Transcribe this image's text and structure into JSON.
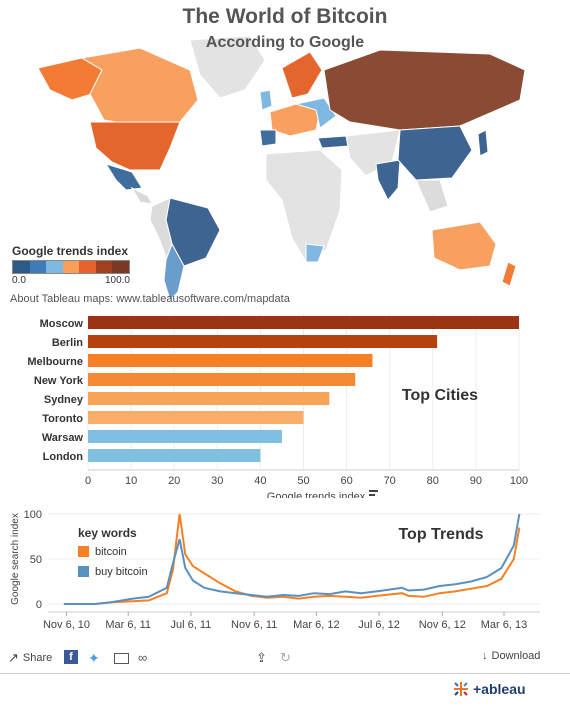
{
  "title": "The World of Bitcoin",
  "map": {
    "subtitle": "According to Google",
    "legend_title": "Google trends index",
    "legend_min": "0.0",
    "legend_max": "100.0",
    "legend_colors": [
      "#2e5a87",
      "#3f7bb8",
      "#7fb8e0",
      "#f7a05a",
      "#e8632c",
      "#a0401e",
      "#7a3a26"
    ],
    "about": "About Tableau maps: www.tableausoftware.com/mapdata"
  },
  "chart_data": [
    {
      "type": "bar",
      "title": "Top Cities",
      "categories": [
        "Moscow",
        "Berlin",
        "Melbourne",
        "New York",
        "Sydney",
        "Toronto",
        "Warsaw",
        "London"
      ],
      "values": [
        100,
        81,
        66,
        62,
        56,
        50,
        45,
        40
      ],
      "colors": [
        "#9a3412",
        "#b5410f",
        "#f58025",
        "#f58a34",
        "#f8a458",
        "#f9ad68",
        "#7fc0e0",
        "#7fc0e0"
      ],
      "xlabel": "Google trends index",
      "xlim": [
        0,
        100
      ],
      "xticks": [
        0,
        10,
        20,
        30,
        40,
        50,
        60,
        70,
        80,
        90,
        100
      ]
    },
    {
      "type": "line",
      "title": "Top Trends",
      "ylabel": "Google search index",
      "ylim": [
        0,
        100
      ],
      "yticks": [
        0,
        50,
        100
      ],
      "xlim": [
        "2010-10-01",
        "2013-05-15"
      ],
      "xticks": [
        "2010-11-06",
        "2011-03-06",
        "2011-07-06",
        "2011-11-06",
        "2012-03-06",
        "2012-07-06",
        "2012-11-06",
        "2013-03-06"
      ],
      "xtick_labels": [
        "Nov 6, 10",
        "Mar 6, 11",
        "Jul 6, 11",
        "Nov 6, 11",
        "Mar 6, 12",
        "Jul 6, 12",
        "Nov 6, 12",
        "Mar 6, 13"
      ],
      "legend_title": "key words",
      "series": [
        {
          "name": "bitcoin",
          "color": "#f58025",
          "points": [
            [
              "2010-11-01",
              0
            ],
            [
              "2011-01-01",
              0
            ],
            [
              "2011-02-01",
              2
            ],
            [
              "2011-03-15",
              3
            ],
            [
              "2011-04-15",
              4
            ],
            [
              "2011-05-20",
              12
            ],
            [
              "2011-06-01",
              38
            ],
            [
              "2011-06-14",
              100
            ],
            [
              "2011-06-25",
              55
            ],
            [
              "2011-07-10",
              42
            ],
            [
              "2011-08-01",
              34
            ],
            [
              "2011-09-01",
              23
            ],
            [
              "2011-10-01",
              14
            ],
            [
              "2011-11-01",
              9
            ],
            [
              "2011-12-01",
              7
            ],
            [
              "2012-01-01",
              8
            ],
            [
              "2012-02-01",
              6
            ],
            [
              "2012-03-01",
              8
            ],
            [
              "2012-04-01",
              9
            ],
            [
              "2012-05-01",
              8
            ],
            [
              "2012-06-01",
              7
            ],
            [
              "2012-07-01",
              9
            ],
            [
              "2012-08-20",
              12
            ],
            [
              "2012-09-01",
              9
            ],
            [
              "2012-10-01",
              8
            ],
            [
              "2012-11-01",
              12
            ],
            [
              "2012-12-01",
              14
            ],
            [
              "2013-01-01",
              17
            ],
            [
              "2013-02-01",
              20
            ],
            [
              "2013-03-01",
              28
            ],
            [
              "2013-03-25",
              50
            ],
            [
              "2013-04-05",
              85
            ]
          ]
        },
        {
          "name": "buy bitcoin",
          "color": "#5a8fc2",
          "points": [
            [
              "2010-11-01",
              0
            ],
            [
              "2011-01-01",
              0
            ],
            [
              "2011-02-01",
              2
            ],
            [
              "2011-03-15",
              6
            ],
            [
              "2011-04-15",
              8
            ],
            [
              "2011-05-20",
              18
            ],
            [
              "2011-06-01",
              45
            ],
            [
              "2011-06-14",
              72
            ],
            [
              "2011-06-25",
              40
            ],
            [
              "2011-07-10",
              26
            ],
            [
              "2011-08-01",
              18
            ],
            [
              "2011-09-01",
              14
            ],
            [
              "2011-10-01",
              12
            ],
            [
              "2011-11-01",
              10
            ],
            [
              "2011-12-01",
              8
            ],
            [
              "2012-01-01",
              10
            ],
            [
              "2012-02-01",
              9
            ],
            [
              "2012-03-01",
              12
            ],
            [
              "2012-04-01",
              11
            ],
            [
              "2012-05-01",
              14
            ],
            [
              "2012-06-01",
              12
            ],
            [
              "2012-07-01",
              14
            ],
            [
              "2012-08-20",
              18
            ],
            [
              "2012-09-01",
              15
            ],
            [
              "2012-10-01",
              16
            ],
            [
              "2012-11-01",
              20
            ],
            [
              "2012-12-01",
              22
            ],
            [
              "2013-01-01",
              25
            ],
            [
              "2013-02-01",
              30
            ],
            [
              "2013-03-01",
              40
            ],
            [
              "2013-03-25",
              65
            ],
            [
              "2013-04-05",
              100
            ]
          ]
        }
      ]
    }
  ],
  "toolbar": {
    "share_label": "Share",
    "download_label": "Download"
  },
  "footer": {
    "logo_text": "+ableau"
  }
}
